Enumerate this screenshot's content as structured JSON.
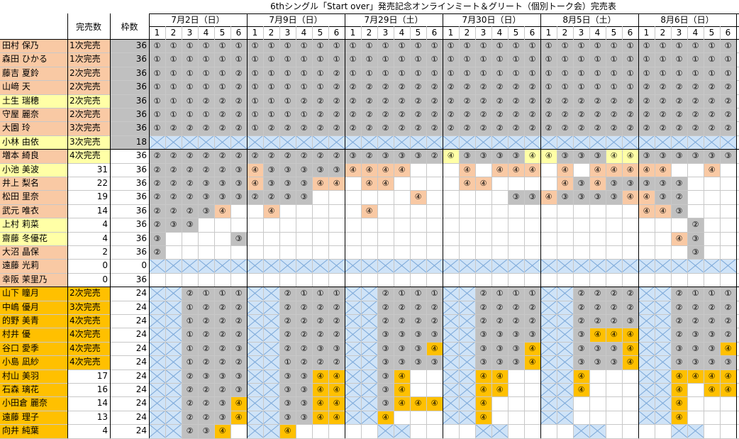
{
  "title": "6thシングル「Start over」発売記念オンラインミート＆グリート（個別トーク会）完売表",
  "headers": {
    "sold": "完売数",
    "slots": "枠数"
  },
  "dates": [
    "7月2日（日）",
    "7月9日（日）",
    "7月29日（土）",
    "7月30日（日）",
    "8月5日（土）",
    "8月6日（日）"
  ],
  "parts": [
    "1",
    "2",
    "3",
    "4",
    "5",
    "6"
  ],
  "colors": {
    "orange": "#f9c9a4",
    "yellow": "#ffffa6",
    "gold": "#ffc000",
    "gray": "#c0c0c0",
    "white": "#ffffff",
    "xfill": "#cfe3f7",
    "xline": "#7aa7d8",
    "grayframe": "#c0c0c0"
  },
  "rows": [
    {
      "name": "田村 保乃",
      "sold": "1次完売",
      "slots": "36",
      "nc": "orange",
      "sc": "orange",
      "fc": "gray",
      "cells": "111111111111111111111111111111111111"
    },
    {
      "name": "森田 ひかる",
      "sold": "1次完売",
      "slots": "36",
      "nc": "orange",
      "sc": "orange",
      "fc": "gray",
      "cells": "111111111111111111111111111111111111"
    },
    {
      "name": "藤吉 夏鈴",
      "sold": "2次完売",
      "slots": "36",
      "nc": "orange",
      "sc": "orange",
      "fc": "gray",
      "cells": "111112111112111111111111111111111111"
    },
    {
      "name": "山﨑 天",
      "sold": "2次完売",
      "slots": "36",
      "nc": "orange",
      "sc": "orange",
      "fc": "gray",
      "cells": "111112111112222222222222111111222222"
    },
    {
      "name": "土生 瑞穂",
      "sold": "2次完売",
      "slots": "36",
      "nc": "yellow",
      "sc": "yellow",
      "fc": "gray",
      "cells": "111222111222222222222222222222222222"
    },
    {
      "name": "守屋 麗奈",
      "sold": "2次完売",
      "slots": "36",
      "nc": "orange",
      "sc": "orange",
      "fc": "gray",
      "cells": "111122111122222222222222222222222222"
    },
    {
      "name": "大園 玲",
      "sold": "3次完売",
      "slots": "36",
      "nc": "orange",
      "sc": "orange",
      "fc": "gray",
      "cells": "122222122222222222222222222222222222"
    },
    {
      "name": "小林 由依",
      "sold": "3次完売",
      "slots": "18",
      "nc": "yellow",
      "sc": "yellow",
      "fc": "gray",
      "cells": "XXXXXXXXXXXXXXXXXXXXXXXXXXXXXXXXXXXX"
    },
    {
      "name": "増本 綺良",
      "sold": "4次完売",
      "slots": "36",
      "nc": "orange",
      "sc": "yellow",
      "fc": "white",
      "cells": "222222222222323332433334433344333333"
    },
    {
      "name": "小池 美波",
      "sold": "31",
      "slots": "36",
      "nc": "yellow",
      "sc": "white",
      "fc": "white",
      "cells": "2222234333334444...4.444.4.44444..4..."
    },
    {
      "name": "井上 梨名",
      "sold": "22",
      "slots": "36",
      "nc": "orange",
      "sc": "white",
      "fc": "white",
      "cells": "222333433344.44....44....43433333"
    },
    {
      "name": "松田 里奈",
      "sold": "19",
      "slots": "36",
      "nc": "orange",
      "sc": "white",
      "fc": "white",
      "cells": "2223332233......4.....33433334432"
    },
    {
      "name": "武元 唯衣",
      "sold": "14",
      "slots": "36",
      "nc": "orange",
      "sc": "white",
      "fc": "white",
      "cells": "22234..4.....4................443"
    },
    {
      "name": "上村 莉菜",
      "sold": "4",
      "slots": "36",
      "nc": "yellow",
      "sc": "white",
      "fc": "white",
      "cells": "233..............................2"
    },
    {
      "name": "齋藤 冬優花",
      "sold": "4",
      "slots": "36",
      "nc": "yellow",
      "sc": "white",
      "fc": "white",
      "cells": "3....3..........................43"
    },
    {
      "name": "大沼 晶保",
      "sold": "2",
      "slots": "36",
      "nc": "orange",
      "sc": "white",
      "fc": "white",
      "cells": "2................................3"
    },
    {
      "name": "遠藤 光莉",
      "sold": "0",
      "slots": "0",
      "nc": "orange",
      "sc": "white",
      "fc": "white",
      "cells": "XXXXXXXXXXXXXXXXXXXXXXXXXXXXXXXXXXXX"
    },
    {
      "name": "幸阪 茉里乃",
      "sold": "0",
      "slots": "36",
      "nc": "orange",
      "sc": "white",
      "fc": "white",
      "cells": "...................................."
    },
    {
      "name": "山下 瞳月",
      "sold": "2次完売",
      "slots": "24",
      "nc": "gold",
      "sc": "gold",
      "fc": "white",
      "cells": "XX2111XX2111XX2111XX2111XX2222XX2111"
    },
    {
      "name": "中嶋 優月",
      "sold": "3次完売",
      "slots": "24",
      "nc": "gold",
      "sc": "gold",
      "fc": "white",
      "cells": "XX1222XX2222XX2222XX2222XX2222XX2222"
    },
    {
      "name": "的野 美青",
      "sold": "4次完売",
      "slots": "24",
      "nc": "gold",
      "sc": "gold",
      "fc": "white",
      "cells": "XX1222XX2222XX2222XX2222XX2223XX2222"
    },
    {
      "name": "村井 優",
      "sold": "4次完売",
      "slots": "24",
      "nc": "gold",
      "sc": "gold",
      "fc": "white",
      "cells": "XX1222XX2222XX3333XX3333XX3444XX2332"
    },
    {
      "name": "谷口 愛季",
      "sold": "4次完売",
      "slots": "24",
      "nc": "gold",
      "sc": "gold",
      "fc": "white",
      "cells": "XX1223XX2233XX3334XX3334XX3334XX3334"
    },
    {
      "name": "小島 凪紗",
      "sold": "4次完売",
      "slots": "24",
      "nc": "gold",
      "sc": "gold",
      "fc": "white",
      "cells": "XX1222XX1222XX3333XX3334XX3334XX3333"
    },
    {
      "name": "村山 美羽",
      "sold": "17",
      "slots": "24",
      "nc": "gold",
      "sc": "white",
      "fc": "white",
      "cells": "XX2333XX3344XX34..XX44..XX4...XX4444"
    },
    {
      "name": "石森 璃花",
      "sold": "16",
      "slots": "24",
      "nc": "gold",
      "sc": "white",
      "fc": "white",
      "cells": "XX2223XX3344XX34..XX44..XX4...XX4.44"
    },
    {
      "name": "小田倉 麗奈",
      "sold": "14",
      "slots": "24",
      "nc": "gold",
      "sc": "white",
      "fc": "white",
      "cells": "XX2234XX3344XX3444XX4...XX....XX4..."
    },
    {
      "name": "遠藤 理子",
      "sold": "13",
      "slots": "24",
      "nc": "gold",
      "sc": "white",
      "fc": "white",
      "cells": "XX2234XX3344XX4...XX4...XX....XX4..."
    },
    {
      "name": "向井 純葉",
      "sold": "4",
      "slots": "24",
      "nc": "gold",
      "sc": "white",
      "fc": "white",
      "cells": "XX234.XX4.....XX....XX....XX....XX...."
    }
  ]
}
